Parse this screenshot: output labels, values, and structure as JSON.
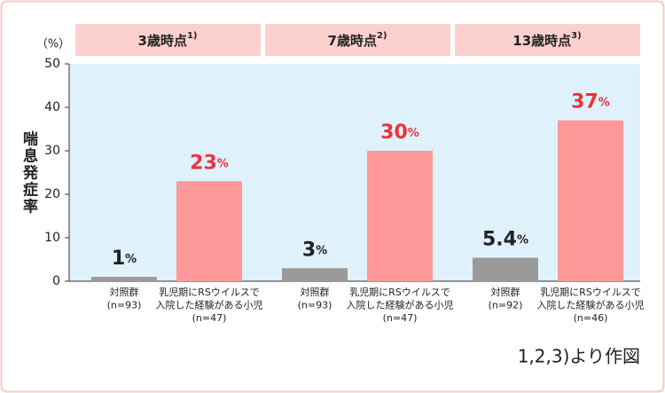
{
  "chart_data": {
    "type": "bar",
    "y_label": "喘息発症率",
    "y_unit_label": "（%）",
    "value_unit": "%",
    "ylim": [
      0,
      50
    ],
    "yticks": [
      0,
      10,
      20,
      30,
      40,
      50
    ],
    "colors": [
      "#9a9a9a",
      "#ff9898"
    ],
    "value_label_colors": [
      "#222222",
      "#e8333f"
    ],
    "panels": [
      {
        "title": "3歳時点",
        "note": "1)",
        "categories": [
          [
            "対照群",
            "(n=93)"
          ],
          [
            "乳児期にRSウイルスで",
            "入院した経験がある小児",
            "(n=47)"
          ]
        ],
        "values": [
          1,
          23
        ]
      },
      {
        "title": "7歳時点",
        "note": "2)",
        "categories": [
          [
            "対照群",
            "(n=93)"
          ],
          [
            "乳児期にRSウイルスで",
            "入院した経験がある小児",
            "(n=47)"
          ]
        ],
        "values": [
          3,
          30
        ]
      },
      {
        "title": "13歳時点",
        "note": "3)",
        "categories": [
          [
            "対照群",
            "(n=92)"
          ],
          [
            "乳児期にRSウイルスで",
            "入院した経験がある小児",
            "(n=46)"
          ]
        ],
        "values": [
          5.4,
          37
        ]
      }
    ],
    "source": "1,2,3)より作図"
  }
}
